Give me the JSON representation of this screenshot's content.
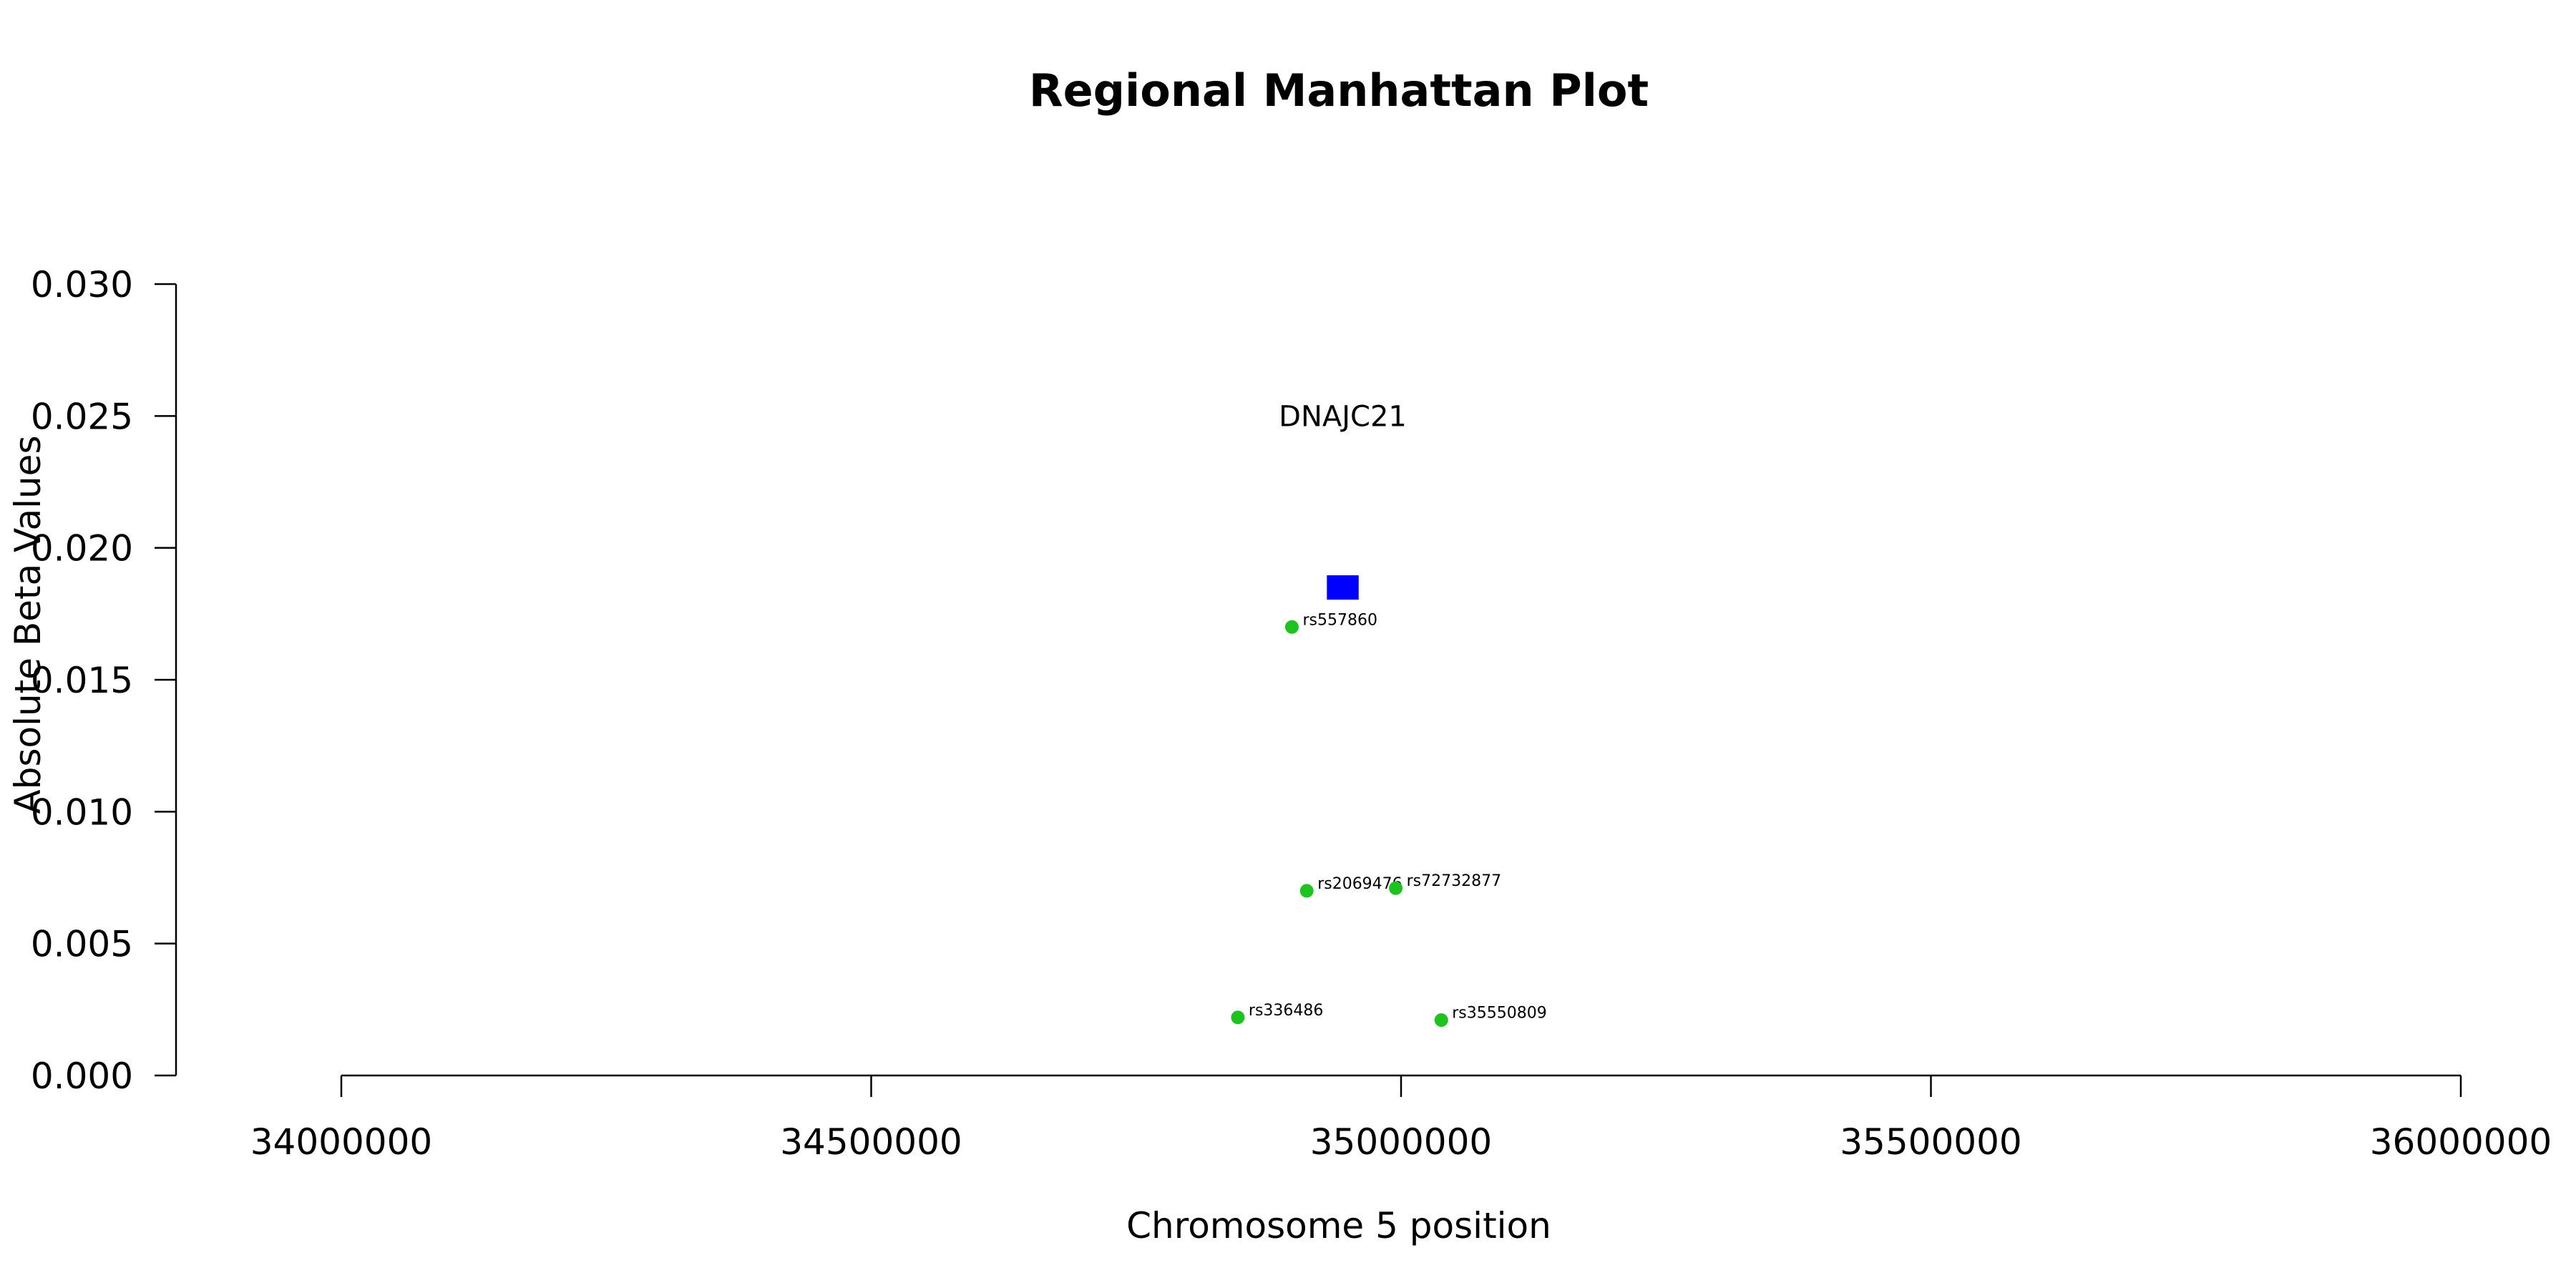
{
  "chart_data": {
    "type": "scatter",
    "title": "Regional Manhattan Plot",
    "xlabel": "Chromosome 5 position",
    "ylabel": "Absolute Beta Values",
    "xlim": [
      34000000,
      36000000
    ],
    "ylim": [
      0,
      0.03
    ],
    "x_ticks": [
      "34000000",
      "34500000",
      "35000000",
      "35500000",
      "36000000"
    ],
    "y_ticks": [
      "0.000",
      "0.005",
      "0.010",
      "0.015",
      "0.020",
      "0.025",
      "0.030"
    ],
    "gene": {
      "name": "DNAJC21",
      "start": 34930000,
      "end": 34960000,
      "y": 0.0185,
      "label_y": 0.025,
      "color": "#0000ff"
    },
    "points": [
      {
        "label": "rs557860",
        "x": 34897000,
        "y": 0.017
      },
      {
        "label": "rs2069476",
        "x": 34911000,
        "y": 0.007
      },
      {
        "label": "rs72732877",
        "x": 34995000,
        "y": 0.0071
      },
      {
        "label": "rs336486",
        "x": 34846000,
        "y": 0.0022
      },
      {
        "label": "rs35550809",
        "x": 35038000,
        "y": 0.0021
      }
    ],
    "point_color": "#1ec41e",
    "grid": false,
    "legend": "none"
  }
}
